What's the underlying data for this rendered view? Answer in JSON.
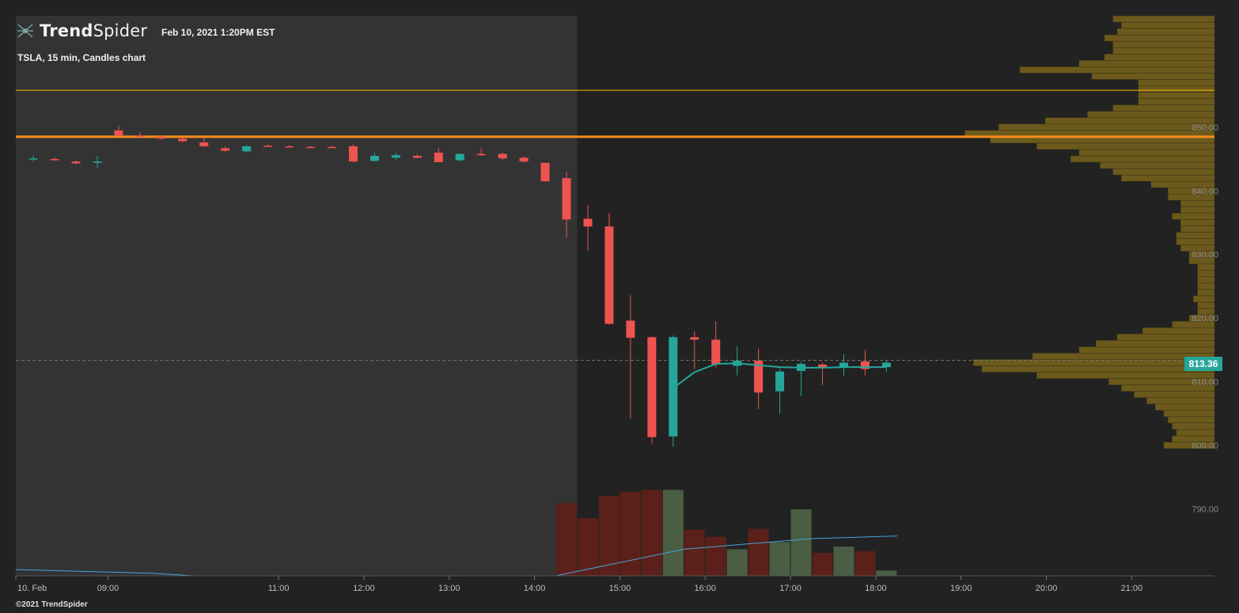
{
  "header": {
    "brand_bold": "Trend",
    "brand_light": "Spider",
    "timestamp": "Feb 10, 2021 1:20PM EST",
    "subtitle": "TSLA, 15 min, Candles chart"
  },
  "footer": {
    "copyright": "©2021 TrendSpider"
  },
  "last_price_label": "813.36",
  "colors": {
    "background": "#222222",
    "premarket_shade": "#333333",
    "bull": "#26a69a",
    "bear": "#ef5350",
    "volume_bull": "#4a5e44",
    "volume_bear": "#5a2019",
    "volume_profile": "#6b5a1c",
    "level_major": "#ff8c1a",
    "level_minor": "#f2b705",
    "vwap": "#26a69a",
    "volume_avg": "#4aa3df"
  },
  "chart_data": {
    "type": "candlestick",
    "title": "TSLA, 15 min, Candles chart",
    "symbol": "TSLA",
    "interval": "15 min",
    "x_ticks": [
      "10. Feb",
      "09:00",
      "11:00",
      "12:00",
      "13:00",
      "14:00",
      "15:00",
      "16:00",
      "17:00",
      "18:00",
      "19:00",
      "20:00",
      "21:00"
    ],
    "y_ticks": [
      850,
      840,
      830,
      820,
      810,
      800,
      790
    ],
    "ylim": [
      779.5,
      867.5
    ],
    "time_range_hours": [
      7.92,
      21.97
    ],
    "premarket_end_hour": 14.5,
    "last_price": 813.36,
    "horizontal_levels": [
      {
        "price": 848.5,
        "style": "major"
      },
      {
        "price": 855.8,
        "style": "minor"
      }
    ],
    "candles": [
      {
        "t": 8.0,
        "o": 845.0,
        "h": 845.6,
        "l": 844.6,
        "c": 845.1
      },
      {
        "t": 8.25,
        "o": 845.0,
        "h": 845.3,
        "l": 844.7,
        "c": 844.9
      },
      {
        "t": 8.5,
        "o": 844.6,
        "h": 844.8,
        "l": 844.2,
        "c": 844.3
      },
      {
        "t": 8.75,
        "o": 844.4,
        "h": 845.5,
        "l": 843.5,
        "c": 844.6
      },
      {
        "t": 9.0,
        "o": 849.5,
        "h": 850.2,
        "l": 848.5,
        "c": 848.7
      },
      {
        "t": 9.25,
        "o": 848.7,
        "h": 849.2,
        "l": 848.2,
        "c": 848.6
      },
      {
        "t": 9.5,
        "o": 848.5,
        "h": 848.6,
        "l": 848.0,
        "c": 848.2
      },
      {
        "t": 9.75,
        "o": 848.2,
        "h": 848.4,
        "l": 847.6,
        "c": 847.8
      },
      {
        "t": 10.0,
        "o": 847.6,
        "h": 848.4,
        "l": 846.9,
        "c": 847.0
      },
      {
        "t": 10.25,
        "o": 846.7,
        "h": 847.0,
        "l": 846.1,
        "c": 846.3
      },
      {
        "t": 10.5,
        "o": 846.2,
        "h": 847.2,
        "l": 846.1,
        "c": 847.0
      },
      {
        "t": 10.75,
        "o": 847.1,
        "h": 847.3,
        "l": 846.9,
        "c": 847.0
      },
      {
        "t": 11.0,
        "o": 847.0,
        "h": 847.2,
        "l": 846.8,
        "c": 846.9
      },
      {
        "t": 11.25,
        "o": 846.9,
        "h": 847.1,
        "l": 846.8,
        "c": 846.8
      },
      {
        "t": 11.5,
        "o": 846.9,
        "h": 847.1,
        "l": 846.8,
        "c": 846.8
      },
      {
        "t": 11.75,
        "o": 847.0,
        "h": 847.3,
        "l": 844.5,
        "c": 844.6
      },
      {
        "t": 12.0,
        "o": 844.7,
        "h": 846.0,
        "l": 844.6,
        "c": 845.5
      },
      {
        "t": 12.25,
        "o": 845.2,
        "h": 846.0,
        "l": 844.9,
        "c": 845.6
      },
      {
        "t": 12.5,
        "o": 845.5,
        "h": 845.8,
        "l": 845.1,
        "c": 845.2
      },
      {
        "t": 12.75,
        "o": 846.0,
        "h": 846.8,
        "l": 844.5,
        "c": 844.5
      },
      {
        "t": 13.0,
        "o": 844.8,
        "h": 845.9,
        "l": 844.6,
        "c": 845.8
      },
      {
        "t": 13.25,
        "o": 845.8,
        "h": 846.7,
        "l": 845.5,
        "c": 845.6
      },
      {
        "t": 13.5,
        "o": 845.8,
        "h": 846.0,
        "l": 844.9,
        "c": 845.1
      },
      {
        "t": 13.75,
        "o": 845.2,
        "h": 845.4,
        "l": 844.4,
        "c": 844.6
      },
      {
        "t": 14.0,
        "o": 844.4,
        "h": 844.4,
        "l": 841.4,
        "c": 841.5
      },
      {
        "t": 14.25,
        "o": 842.0,
        "h": 843.0,
        "l": 832.6,
        "c": 835.5
      },
      {
        "t": 14.5,
        "o": 835.6,
        "h": 837.8,
        "l": 830.6,
        "c": 834.4
      },
      {
        "t": 14.75,
        "o": 834.4,
        "h": 836.5,
        "l": 819.0,
        "c": 819.1
      },
      {
        "t": 15.0,
        "o": 819.6,
        "h": 823.6,
        "l": 804.2,
        "c": 816.9
      },
      {
        "t": 15.25,
        "o": 817.0,
        "h": 817.1,
        "l": 800.3,
        "c": 801.3
      },
      {
        "t": 15.5,
        "o": 801.4,
        "h": 817.3,
        "l": 799.8,
        "c": 817.0
      },
      {
        "t": 15.75,
        "o": 817.0,
        "h": 817.9,
        "l": 812.0,
        "c": 816.6
      },
      {
        "t": 16.0,
        "o": 816.6,
        "h": 819.5,
        "l": 812.2,
        "c": 812.7
      },
      {
        "t": 16.25,
        "o": 812.5,
        "h": 815.6,
        "l": 811.0,
        "c": 813.3
      },
      {
        "t": 16.5,
        "o": 813.3,
        "h": 815.2,
        "l": 805.7,
        "c": 808.3
      },
      {
        "t": 16.75,
        "o": 808.5,
        "h": 812.1,
        "l": 805.0,
        "c": 811.6
      },
      {
        "t": 17.0,
        "o": 811.7,
        "h": 813.2,
        "l": 807.7,
        "c": 812.8
      },
      {
        "t": 17.25,
        "o": 812.7,
        "h": 813.0,
        "l": 809.5,
        "c": 812.2
      },
      {
        "t": 17.5,
        "o": 812.2,
        "h": 814.3,
        "l": 810.9,
        "c": 813.0
      },
      {
        "t": 17.75,
        "o": 813.2,
        "h": 815.0,
        "l": 811.0,
        "c": 812.0
      },
      {
        "t": 18.0,
        "o": 812.3,
        "h": 813.3,
        "l": 811.5,
        "c": 813.0
      }
    ],
    "vwap": [
      {
        "t": 15.5,
        "v": 809.0
      },
      {
        "t": 15.75,
        "v": 811.5
      },
      {
        "t": 16.0,
        "v": 812.8
      },
      {
        "t": 16.25,
        "v": 812.9
      },
      {
        "t": 16.5,
        "v": 812.6
      },
      {
        "t": 16.75,
        "v": 812.3
      },
      {
        "t": 17.0,
        "v": 812.2
      },
      {
        "t": 17.25,
        "v": 812.2
      },
      {
        "t": 17.5,
        "v": 812.3
      },
      {
        "t": 17.75,
        "v": 812.3
      },
      {
        "t": 18.0,
        "v": 812.3
      }
    ],
    "volume": {
      "relative_heights": [
        0.82,
        0.65,
        0.9,
        0.95,
        0.97,
        0.97,
        0.52,
        0.44,
        0.3,
        0.53,
        0.38,
        0.75,
        0.26,
        0.33,
        0.28,
        0.06
      ],
      "start_t": 14.25,
      "directions": [
        "bear",
        "bear",
        "bear",
        "bear",
        "bear",
        "bull",
        "bear",
        "bear",
        "bull",
        "bear",
        "bull",
        "bull",
        "bear",
        "bull",
        "bear",
        "bull"
      ],
      "average_relative": [
        {
          "t": 7.92,
          "v": 0.07
        },
        {
          "t": 9.5,
          "v": 0.03
        },
        {
          "t": 10.0,
          "v": 0.0
        },
        {
          "t": 14.25,
          "v": 0.0
        },
        {
          "t": 14.5,
          "v": 0.05
        },
        {
          "t": 15.0,
          "v": 0.15
        },
        {
          "t": 15.75,
          "v": 0.3
        },
        {
          "t": 16.5,
          "v": 0.36
        },
        {
          "t": 17.25,
          "v": 0.42
        },
        {
          "t": 18.25,
          "v": 0.45
        }
      ]
    },
    "volume_profile": {
      "price_bins": [
        867,
        866,
        865,
        864,
        863,
        862,
        861,
        860,
        859,
        858,
        857,
        856,
        855,
        854,
        853,
        852,
        851,
        850,
        849,
        848,
        847,
        846,
        845,
        844,
        843,
        842,
        841,
        840,
        839,
        838,
        837,
        836,
        835,
        834,
        833,
        832,
        831,
        830,
        829,
        828,
        827,
        826,
        825,
        824,
        823,
        822,
        821,
        820,
        819,
        818,
        817,
        816,
        815,
        814,
        813,
        812,
        811,
        810,
        809,
        808,
        807,
        806,
        805,
        804,
        803,
        802,
        801,
        800
      ],
      "relative_widths": [
        0.24,
        0.22,
        0.23,
        0.26,
        0.24,
        0.24,
        0.26,
        0.32,
        0.46,
        0.29,
        0.18,
        0.18,
        0.18,
        0.18,
        0.24,
        0.3,
        0.4,
        0.51,
        0.59,
        0.53,
        0.42,
        0.32,
        0.34,
        0.27,
        0.24,
        0.22,
        0.15,
        0.11,
        0.11,
        0.08,
        0.08,
        0.1,
        0.08,
        0.08,
        0.09,
        0.09,
        0.08,
        0.06,
        0.06,
        0.04,
        0.04,
        0.04,
        0.04,
        0.04,
        0.05,
        0.04,
        0.04,
        0.06,
        0.1,
        0.17,
        0.23,
        0.28,
        0.32,
        0.43,
        0.57,
        0.55,
        0.42,
        0.25,
        0.22,
        0.19,
        0.16,
        0.14,
        0.12,
        0.11,
        0.1,
        0.09,
        0.1,
        0.12
      ]
    }
  }
}
